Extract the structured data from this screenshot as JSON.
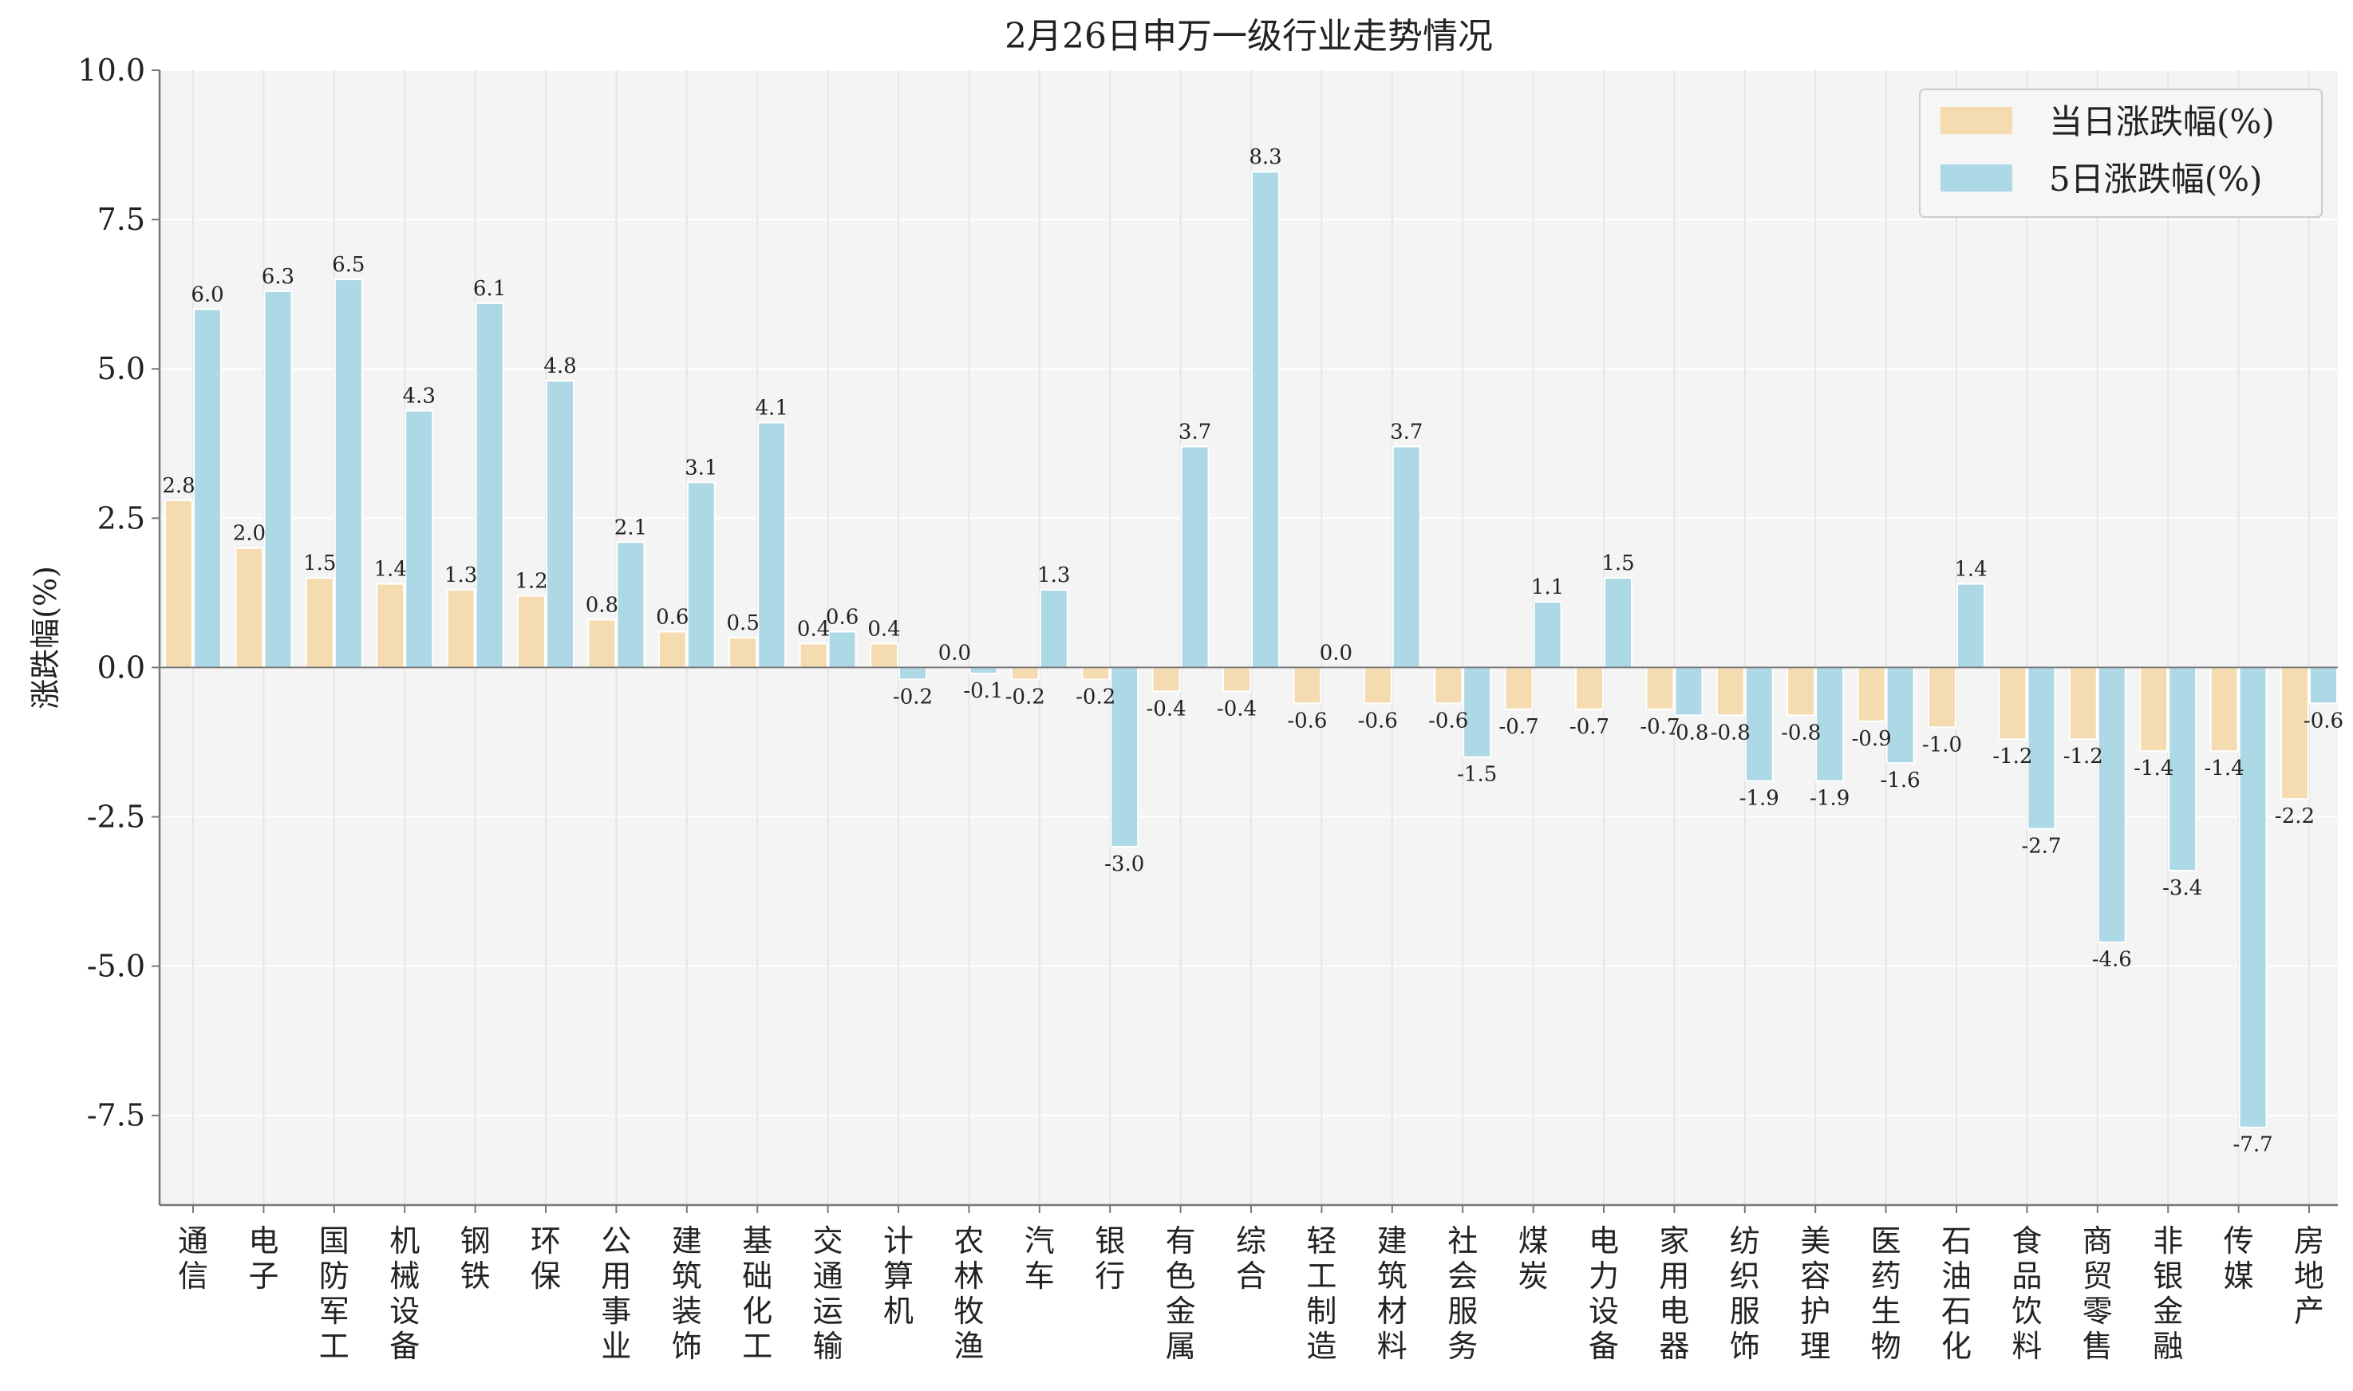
{
  "chart_data": {
    "type": "bar",
    "title": "2月26日申万一级行业走势情况",
    "ylabel": "涨跌幅(%)",
    "xlabel": "",
    "ylim": [
      -9,
      10
    ],
    "yticks": [
      10.0,
      7.5,
      5.0,
      2.5,
      0.0,
      -2.5,
      -5.0,
      -7.5
    ],
    "ytick_labels": [
      "10.0",
      "7.5",
      "5.0",
      "2.5",
      "0.0",
      "-2.5",
      "-5.0",
      "-7.5"
    ],
    "grid": true,
    "legend_position": "top-right",
    "categories": [
      "通信",
      "电子",
      "国防军工",
      "机械设备",
      "钢铁",
      "环保",
      "公用事业",
      "建筑装饰",
      "基础化工",
      "交通运输",
      "计算机",
      "农林牧渔",
      "汽车",
      "银行",
      "有色金属",
      "综合",
      "轻工制造",
      "建筑材料",
      "社会服务",
      "煤炭",
      "电力设备",
      "家用电器",
      "纺织服饰",
      "美容护理",
      "医药生物",
      "石油石化",
      "食品饮料",
      "商贸零售",
      "非银金融",
      "传媒",
      "房地产"
    ],
    "series": [
      {
        "name": "当日涨跌幅(%)",
        "color": "#f5dcb0",
        "values": [
          2.8,
          2.0,
          1.5,
          1.4,
          1.3,
          1.2,
          0.8,
          0.6,
          0.5,
          0.4,
          0.4,
          0.0,
          -0.2,
          -0.2,
          -0.4,
          -0.4,
          -0.6,
          -0.6,
          -0.6,
          -0.7,
          -0.7,
          -0.7,
          -0.8,
          -0.8,
          -0.9,
          -1.0,
          -1.2,
          -1.2,
          -1.4,
          -1.4,
          -2.2
        ],
        "labels": [
          "2.8",
          "2.0",
          "1.5",
          "1.4",
          "1.3",
          "1.2",
          "0.8",
          "0.6",
          "0.5",
          "0.4",
          "0.4",
          "0.0",
          "-0.2",
          "-0.2",
          "-0.4",
          "-0.4",
          "-0.6",
          "-0.6",
          "-0.6",
          "-0.7",
          "-0.7",
          "-0.7",
          "-0.8",
          "-0.8",
          "-0.9",
          "-1.0",
          "-1.2",
          "-1.2",
          "-1.4",
          "-1.4",
          "-2.2"
        ]
      },
      {
        "name": "5日涨跌幅(%)",
        "color": "#add8e6",
        "values": [
          6.0,
          6.3,
          6.5,
          4.3,
          6.1,
          4.8,
          2.1,
          3.1,
          4.1,
          0.6,
          -0.2,
          -0.1,
          1.3,
          -3.0,
          3.7,
          8.3,
          0.0,
          3.7,
          -1.5,
          1.1,
          1.5,
          -0.8,
          -1.9,
          -1.9,
          -1.6,
          1.4,
          -2.7,
          -4.6,
          -3.4,
          -7.7,
          -0.6
        ],
        "labels": [
          "6.0",
          "6.3",
          "6.5",
          "4.3",
          "6.1",
          "4.8",
          "2.1",
          "3.1",
          "4.1",
          "0.6",
          "-0.2",
          "-0.1",
          "1.3",
          "-3.0",
          "3.7",
          "8.3",
          "0.0",
          "3.7",
          "-1.5",
          "1.1",
          "1.5",
          "-0.8",
          "-1.9",
          "-1.9",
          "-1.6",
          "1.4",
          "-2.7",
          "-4.6",
          "-3.4",
          "-7.7",
          "-0.6"
        ]
      }
    ]
  }
}
